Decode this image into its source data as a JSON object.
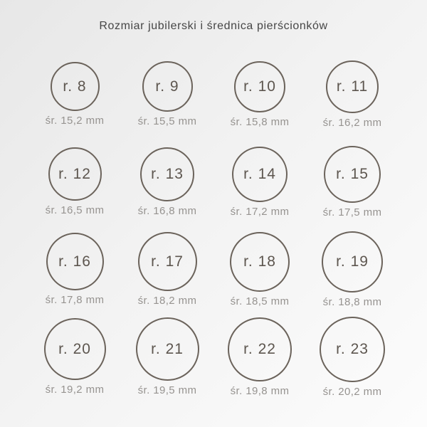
{
  "title": "Rozmiar jubilerski i średnica pierścionków",
  "rings": [
    {
      "size_label": "r. 8",
      "diameter_label": "śr. 15,2 mm",
      "diameter_mm": 15.2
    },
    {
      "size_label": "r. 9",
      "diameter_label": "śr. 15,5 mm",
      "diameter_mm": 15.5
    },
    {
      "size_label": "r. 10",
      "diameter_label": "śr. 15,8 mm",
      "diameter_mm": 15.8
    },
    {
      "size_label": "r. 11",
      "diameter_label": "śr. 16,2 mm",
      "diameter_mm": 16.2
    },
    {
      "size_label": "r. 12",
      "diameter_label": "śr. 16,5 mm",
      "diameter_mm": 16.5
    },
    {
      "size_label": "r. 13",
      "diameter_label": "śr. 16,8 mm",
      "diameter_mm": 16.8
    },
    {
      "size_label": "r. 14",
      "diameter_label": "śr. 17,2 mm",
      "diameter_mm": 17.2
    },
    {
      "size_label": "r. 15",
      "diameter_label": "śr. 17,5 mm",
      "diameter_mm": 17.5
    },
    {
      "size_label": "r. 16",
      "diameter_label": "śr. 17,8 mm",
      "diameter_mm": 17.8
    },
    {
      "size_label": "r. 17",
      "diameter_label": "śr. 18,2 mm",
      "diameter_mm": 18.2
    },
    {
      "size_label": "r. 18",
      "diameter_label": "śr. 18,5 mm",
      "diameter_mm": 18.5
    },
    {
      "size_label": "r. 19",
      "diameter_label": "śr. 18,8 mm",
      "diameter_mm": 18.8
    },
    {
      "size_label": "r. 20",
      "diameter_label": "śr. 19,2 mm",
      "diameter_mm": 19.2
    },
    {
      "size_label": "r. 21",
      "diameter_label": "śr. 19,5 mm",
      "diameter_mm": 19.5
    },
    {
      "size_label": "r. 22",
      "diameter_label": "śr. 19,8 mm",
      "diameter_mm": 19.8
    },
    {
      "size_label": "r. 23",
      "diameter_label": "śr. 20,2 mm",
      "diameter_mm": 20.2
    }
  ],
  "colors": {
    "circle_border": "#6b635b",
    "size_text": "#5d564f",
    "diameter_text": "#969390",
    "title_text": "#464646",
    "background_start": "#e7e7e7",
    "background_end": "#fcfcfc"
  }
}
